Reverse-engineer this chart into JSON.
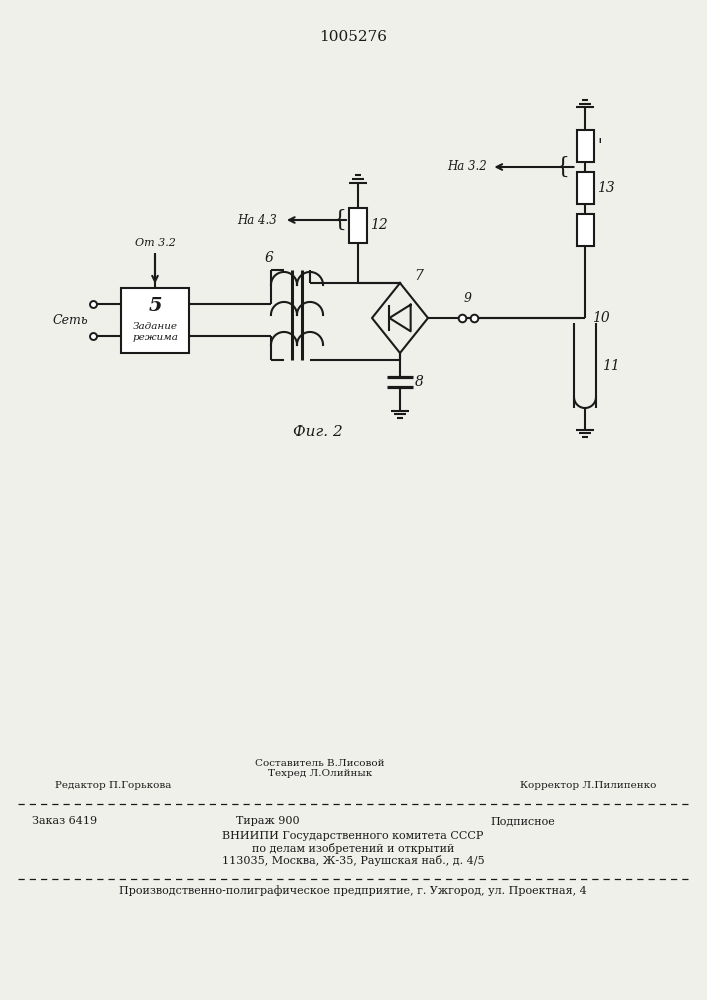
{
  "bg": "#f0f0eb",
  "lc": "#1a1a1a",
  "lw": 1.5,
  "patent": "1005276",
  "fig_label": "Фиг. 2",
  "label_set": "Сеть",
  "label_zadanie": "Задание\nрежима",
  "label_ot32": "От 3.2",
  "label_na32": "На 3.2",
  "label_na43": "На 4.3",
  "n5": "5",
  "n6": "6",
  "n7": "7",
  "n8": "8",
  "n9": "9",
  "n10": "10",
  "n11": "11",
  "n12": "12",
  "n13": "13",
  "footer_comp": "Составитель В.Лисовой",
  "footer_tech": "Техред Л.Олийнык",
  "footer_edit": "Редактор П.Горькова",
  "footer_corr": "Корректор Л.Пилипенко",
  "footer_order": "Заказ 6419",
  "footer_tirazh": "Тираж 900",
  "footer_podp": "Подписное",
  "footer_vnipi": "ВНИИПИ Государственного комитета СССР",
  "footer_po": "по делам изобретений и открытий",
  "footer_addr": "113035, Москва, Ж-35, Раушская наб., д. 4/5",
  "footer_prod": "Производственно-полиграфическое предприятие, г. Ужгород, ул. Проектная, 4"
}
